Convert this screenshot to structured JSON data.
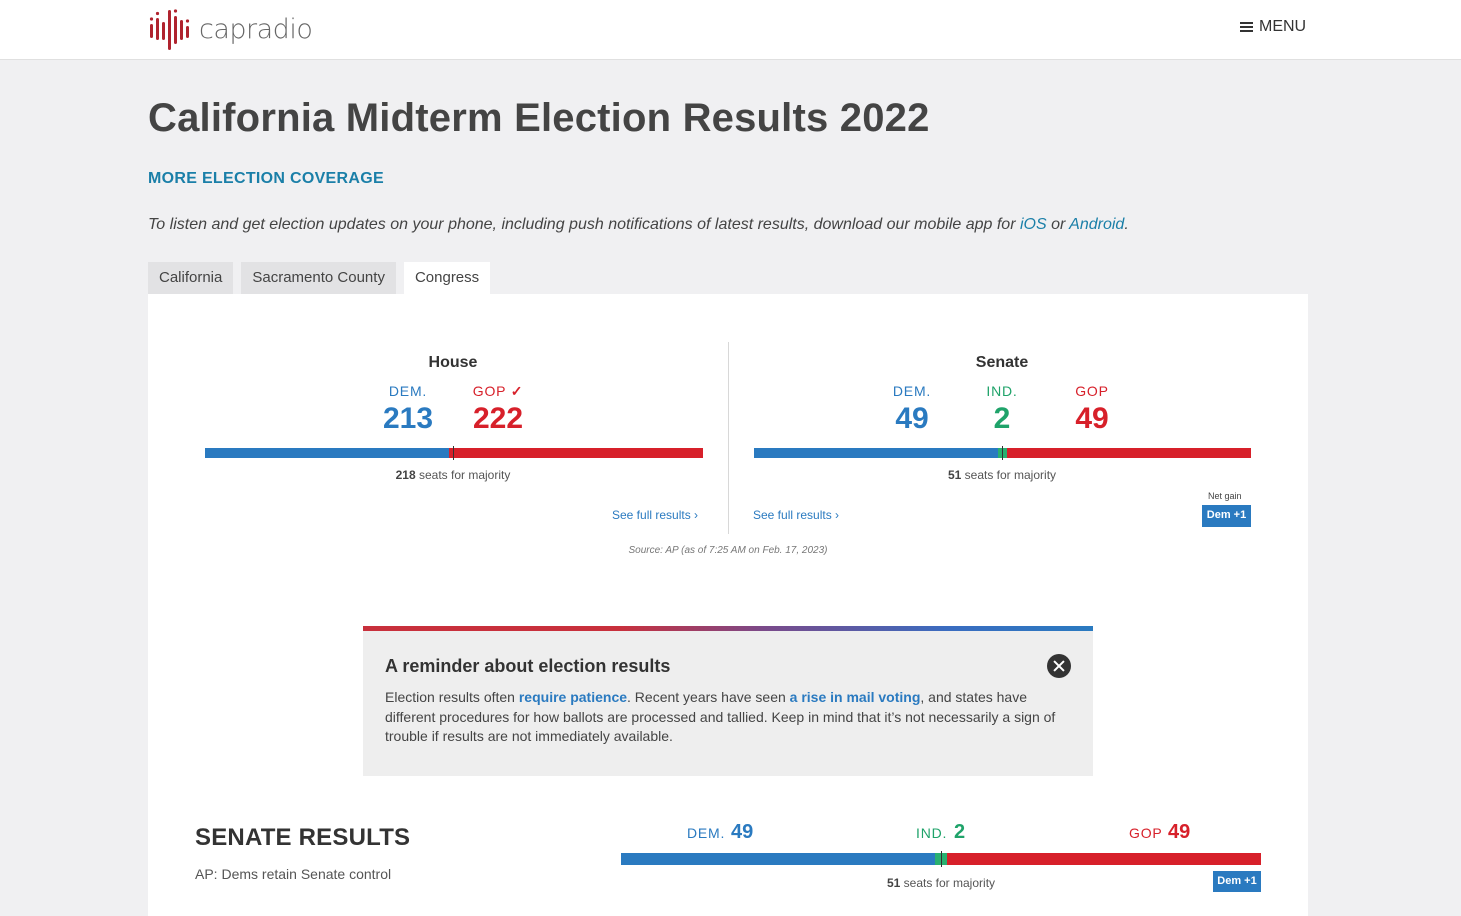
{
  "header": {
    "logo_text": "capradio",
    "menu_label": "MENU"
  },
  "page": {
    "title": "California Midterm Election Results 2022",
    "coverage_link": "MORE ELECTION COVERAGE",
    "app_note_prefix": "To listen and get election updates on your phone, including push notifications of latest results, download our mobile app for ",
    "app_note_ios": "iOS",
    "app_note_or": " or ",
    "app_note_android": "Android",
    "app_note_suffix": "."
  },
  "tabs": [
    {
      "label": "California",
      "active": false
    },
    {
      "label": "Sacramento County",
      "active": false
    },
    {
      "label": "Congress",
      "active": true
    }
  ],
  "house": {
    "title": "House",
    "dem_label": "DEM.",
    "gop_label": "GOP",
    "gop_winner_check": "✓",
    "dem_seats": 213,
    "gop_seats": 222,
    "majority_num": "218",
    "majority_text": " seats for majority",
    "full_results": "See full results ›"
  },
  "senate": {
    "title": "Senate",
    "dem_label": "DEM.",
    "ind_label": "IND.",
    "gop_label": "GOP",
    "dem_seats": 49,
    "ind_seats": 2,
    "gop_seats": 49,
    "majority_num": "51",
    "majority_text": " seats for majority",
    "full_results": "See full results ›",
    "net_gain_label": "Net gain",
    "net_gain_badge": "Dem +1"
  },
  "source": "Source: AP (as of 7:25 AM on Feb. 17, 2023)",
  "reminder": {
    "title": "A reminder about election results",
    "text_1": "Election results often ",
    "link_1": "require patience",
    "text_2": ". Recent years have seen ",
    "link_2": "a rise in mail voting",
    "text_3": ", and states have different procedures for how ballots are processed and tallied. Keep in mind that it’s not necessarily a sign of trouble if results are not immediately available."
  },
  "senate_results": {
    "title": "SENATE RESULTS",
    "note": "AP: Dems retain Senate control",
    "dem_label": "DEM.",
    "dem_seats": "49",
    "ind_label": "IND.",
    "ind_seats": "2",
    "gop_label": "GOP",
    "gop_seats": "49",
    "majority_num": "51",
    "majority_text": " seats for majority",
    "net_gain_badge": "Dem +1"
  },
  "colors": {
    "dem": "#2a7ac0",
    "gop": "#d7202a",
    "ind": "#1fa36a",
    "link": "#1a7fa8"
  }
}
